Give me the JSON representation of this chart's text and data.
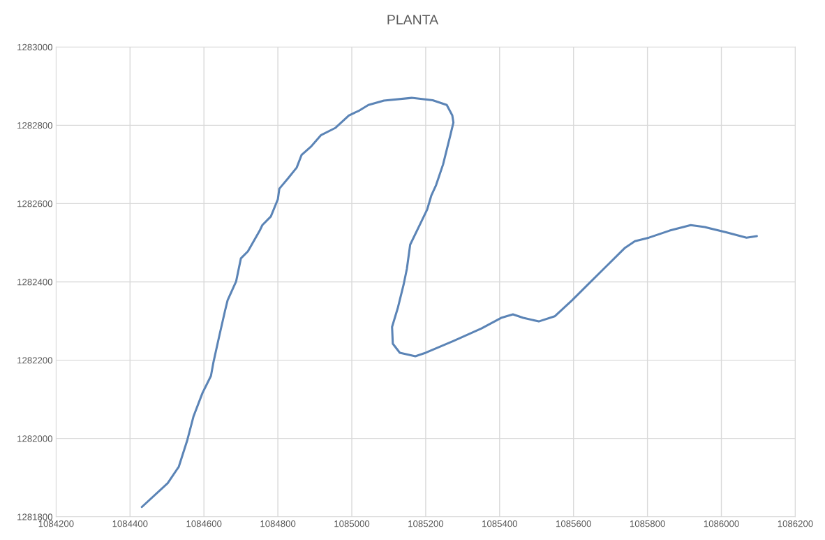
{
  "chart_data": {
    "type": "line",
    "title": "PLANTA",
    "grid": true,
    "marker": "none",
    "line_style": "solid",
    "xlim": [
      1084200,
      1086200
    ],
    "xticks": [
      1084200,
      1084400,
      1084600,
      1084800,
      1085000,
      1085200,
      1085400,
      1085600,
      1085800,
      1086000,
      1086200
    ],
    "ylim": [
      1281800,
      1283000
    ],
    "yticks": [
      1281800,
      1282000,
      1282200,
      1282400,
      1282600,
      1282800,
      1283000
    ],
    "series": [
      {
        "color": "#5b84b6",
        "x": [
          1084432,
          1084502,
          1084532,
          1084555,
          1084572,
          1084596,
          1084619,
          1084626,
          1084642,
          1084657,
          1084664,
          1084687,
          1084700,
          1084719,
          1084751,
          1084758,
          1084781,
          1084800,
          1084804,
          1084828,
          1084851,
          1084864,
          1084889,
          1084917,
          1084955,
          1084992,
          1085021,
          1085045,
          1085087,
          1085162,
          1085219,
          1085257,
          1085272,
          1085275,
          1085266,
          1085247,
          1085228,
          1085215,
          1085204,
          1085181,
          1085158,
          1085149,
          1085140,
          1085125,
          1085109,
          1085111,
          1085130,
          1085172,
          1085200,
          1085275,
          1085351,
          1085404,
          1085436,
          1085464,
          1085506,
          1085549,
          1085596,
          1085643,
          1085691,
          1085738,
          1085766,
          1085804,
          1085860,
          1085917,
          1085955,
          1086011,
          1086068,
          1086096
        ],
        "values": [
          1281825,
          1281886,
          1281928,
          1281996,
          1282057,
          1282116,
          1282160,
          1282196,
          1282264,
          1282326,
          1282353,
          1282401,
          1282460,
          1282478,
          1282531,
          1282545,
          1282567,
          1282611,
          1282638,
          1282665,
          1282692,
          1282724,
          1282745,
          1282775,
          1282793,
          1282825,
          1282838,
          1282852,
          1282863,
          1282870,
          1282864,
          1282852,
          1282825,
          1282807,
          1282772,
          1282700,
          1282647,
          1282620,
          1282585,
          1282540,
          1282495,
          1282433,
          1282392,
          1282335,
          1282285,
          1282242,
          1282219,
          1282210,
          1282219,
          1282249,
          1282281,
          1282308,
          1282317,
          1282308,
          1282299,
          1282312,
          1282353,
          1282397,
          1282442,
          1282486,
          1282504,
          1282513,
          1282531,
          1282545,
          1282540,
          1282527,
          1282513,
          1282517
        ]
      }
    ]
  }
}
